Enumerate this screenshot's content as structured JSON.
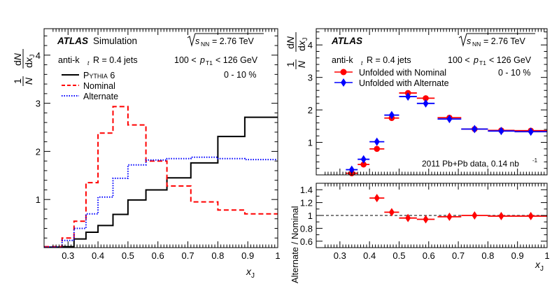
{
  "chart_data": [
    {
      "type": "line",
      "panel": "left",
      "step": true,
      "xlim": [
        0.22,
        1.0
      ],
      "ylim": [
        0,
        4.55
      ],
      "xlabel": "x_J",
      "ylabel": "1/N dN/dx_J",
      "xticks": [
        "0.3",
        "0.4",
        "0.5",
        "0.6",
        "0.7",
        "0.8",
        "0.9",
        "1"
      ],
      "yticks": [
        "1",
        "2",
        "3",
        "4"
      ],
      "bin_edges": [
        0.22,
        0.28,
        0.32,
        0.36,
        0.4,
        0.45,
        0.5,
        0.56,
        0.63,
        0.71,
        0.8,
        0.89,
        1.0
      ],
      "series": [
        {
          "name": "Pythia 6",
          "legend": "P YTHIA 6",
          "color": "#000000",
          "dash": "solid",
          "values": [
            0.01,
            0.02,
            0.18,
            0.32,
            0.46,
            0.69,
            0.99,
            1.2,
            1.45,
            1.76,
            2.31,
            2.71
          ]
        },
        {
          "name": "Nominal",
          "legend": "Nominal",
          "color": "#ff0000",
          "dash": "dashed",
          "values": [
            0.02,
            0.2,
            0.55,
            1.35,
            2.38,
            2.93,
            2.55,
            1.8,
            1.28,
            0.95,
            0.78,
            0.7
          ]
        },
        {
          "name": "Alternate",
          "legend": "Alternate",
          "color": "#0000ff",
          "dash": "dotted",
          "values": [
            0.01,
            0.15,
            0.4,
            0.7,
            1.05,
            1.44,
            1.72,
            1.82,
            1.85,
            1.88,
            1.85,
            1.83
          ]
        }
      ],
      "annotations": {
        "atlas": "ATLAS",
        "atlas_suffix": "Simulation",
        "energy_sqrt": "s",
        "energy_sub": "NN",
        "energy_value": "= 2.76 TeV",
        "algo_a": "anti-k",
        "algo_sub": "t",
        "algo_b": "R = 0.4 jets",
        "pt_a": "100 <",
        "pt_p": "p",
        "pt_sub": "T1",
        "pt_b": "< 126 GeV",
        "centrality": "0 - 10 %"
      }
    },
    {
      "type": "scatter",
      "panel": "right-top",
      "xlim": [
        0.22,
        1.0
      ],
      "ylim": [
        0,
        4.5
      ],
      "xlabel": "x_J",
      "ylabel": "1/N dN/dx_J",
      "yticks": [
        "1",
        "2",
        "3",
        "4"
      ],
      "series": [
        {
          "name": "Unfolded with Nominal",
          "color": "#ff0000",
          "marker": "circle",
          "x": [
            0.34,
            0.38,
            0.425,
            0.475,
            0.53,
            0.59,
            0.67,
            0.755,
            0.845,
            0.945
          ],
          "y": [
            0.05,
            0.32,
            0.8,
            1.75,
            2.52,
            2.36,
            1.76,
            1.41,
            1.37,
            1.36
          ]
        },
        {
          "name": "Unfolded with Alternate",
          "color": "#0000ff",
          "marker": "diamond",
          "x": [
            0.34,
            0.38,
            0.425,
            0.475,
            0.53,
            0.59,
            0.67,
            0.755,
            0.845,
            0.945
          ],
          "y": [
            0.16,
            0.48,
            1.02,
            1.84,
            2.41,
            2.2,
            1.72,
            1.41,
            1.35,
            1.33
          ]
        }
      ],
      "bin_halfwidths": [
        0.02,
        0.02,
        0.025,
        0.025,
        0.03,
        0.03,
        0.04,
        0.045,
        0.045,
        0.055
      ],
      "annotations": {
        "atlas": "ATLAS",
        "energy_sqrt": "s",
        "energy_sub": "NN",
        "energy_value": "= 2.76 TeV",
        "algo_a": "anti-k",
        "algo_sub": "t",
        "algo_b": "R = 0.4 jets",
        "pt_a": "100 <",
        "pt_p": "p",
        "pt_sub": "T1",
        "pt_b": "< 126 GeV",
        "centrality": "0 - 10 %",
        "dataset": "2011 Pb+Pb data, 0.14 nb",
        "dataset_sup": "-1"
      }
    },
    {
      "type": "scatter",
      "panel": "right-bottom",
      "xlim": [
        0.22,
        1.0
      ],
      "ylim": [
        0.5,
        1.5
      ],
      "xlabel": "x_J",
      "ylabel": "Alternate / Nominal",
      "xticks": [
        "0.3",
        "0.4",
        "0.5",
        "0.6",
        "0.7",
        "0.8",
        "0.9",
        "1"
      ],
      "yticks": [
        "0.6",
        "0.8",
        "1",
        "1.2",
        "1.4"
      ],
      "reference_line": 1.0,
      "series": [
        {
          "name": "Ratio",
          "color": "#ff0000",
          "marker": "diamond",
          "x": [
            0.425,
            0.475,
            0.53,
            0.59,
            0.67,
            0.755,
            0.845,
            0.945
          ],
          "y": [
            1.27,
            1.05,
            0.96,
            0.94,
            0.98,
            1.0,
            0.99,
            0.99
          ]
        }
      ],
      "bin_halfwidths": [
        0.025,
        0.025,
        0.03,
        0.03,
        0.04,
        0.045,
        0.045,
        0.055
      ]
    }
  ]
}
